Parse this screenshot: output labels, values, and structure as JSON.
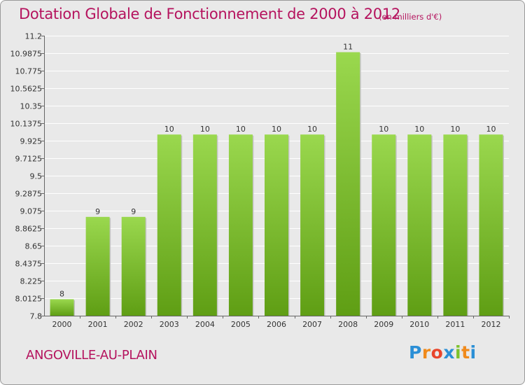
{
  "chart_data": {
    "type": "bar",
    "title": "Dotation Globale de Fonctionnement de 2000 à 2012",
    "subtitle": "(en milliers d'€)",
    "categories": [
      "2000",
      "2001",
      "2002",
      "2003",
      "2004",
      "2005",
      "2006",
      "2007",
      "2008",
      "2009",
      "2010",
      "2011",
      "2012"
    ],
    "values": [
      8,
      9,
      9,
      10,
      10,
      10,
      10,
      10,
      11,
      10,
      10,
      10,
      10
    ],
    "data_labels": [
      "8",
      "9",
      "9",
      "10",
      "10",
      "10",
      "10",
      "10",
      "11",
      "10",
      "10",
      "10",
      "10"
    ],
    "ylim": [
      7.8,
      11.2
    ],
    "yticks": [
      7.8,
      8.0125,
      8.225,
      8.4375,
      8.65,
      8.8625,
      9.075,
      9.2875,
      9.5,
      9.7125,
      9.925,
      10.1375,
      10.35,
      10.5625,
      10.775,
      10.9875,
      11.2
    ],
    "ytick_labels": [
      "7.8",
      "8.0125",
      "8.225",
      "8.4375",
      "8.65",
      "8.8625",
      "9.075",
      "9.2875",
      "9.5",
      "9.7125",
      "9.925",
      "10.1375",
      "10.35",
      "10.5625",
      "10.775",
      "10.9875",
      "11.2"
    ],
    "grid": true,
    "bar_color": "#7cc22c",
    "xlabel": "",
    "ylabel": ""
  },
  "commune": "ANGOVILLE-AU-PLAIN",
  "logo": {
    "letters": [
      "P",
      "r",
      "o",
      "x",
      "i",
      "t",
      "i"
    ],
    "colors": [
      "#2b8fd6",
      "#f08a1c",
      "#e8452c",
      "#2b8fd6",
      "#7cc22c",
      "#f08a1c",
      "#2b8fd6"
    ]
  }
}
